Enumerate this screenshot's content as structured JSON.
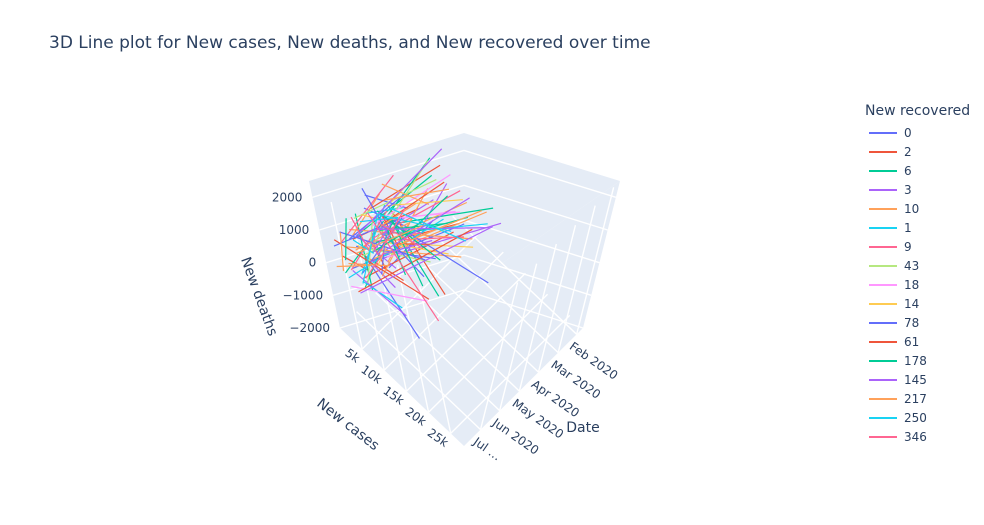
{
  "chart_data": {
    "type": "line",
    "title": "3D Line plot for New cases, New deaths, and New recovered over time",
    "x_axis": {
      "label": "Date",
      "ticks": [
        "Feb 2020",
        "Mar 2020",
        "Apr 2020",
        "May 2020",
        "Jun 2020",
        "Jul …"
      ],
      "range": [
        "2020-01-22",
        "2020-07-27"
      ]
    },
    "y_axis": {
      "label": "New cases",
      "ticks": [
        "5k",
        "10k",
        "15k",
        "20k",
        "25k"
      ],
      "range": [
        0,
        28000
      ]
    },
    "z_axis": {
      "label": "New deaths",
      "ticks": [
        "−2000",
        "−1000",
        "0",
        "1000",
        "2000"
      ],
      "range": [
        -2000,
        2500
      ]
    },
    "legend": {
      "title": "New recovered",
      "placement": "right"
    },
    "series": [
      {
        "name": "0",
        "color": "#636efa"
      },
      {
        "name": "2",
        "color": "#EF553B"
      },
      {
        "name": "6",
        "color": "#00cc96"
      },
      {
        "name": "3",
        "color": "#ab63fa"
      },
      {
        "name": "10",
        "color": "#FFA15A"
      },
      {
        "name": "1",
        "color": "#19d3f3"
      },
      {
        "name": "9",
        "color": "#FF6692"
      },
      {
        "name": "43",
        "color": "#B6E880"
      },
      {
        "name": "18",
        "color": "#FF97FF"
      },
      {
        "name": "14",
        "color": "#FECB52"
      },
      {
        "name": "78",
        "color": "#636efa"
      },
      {
        "name": "61",
        "color": "#EF553B"
      },
      {
        "name": "178",
        "color": "#00cc96"
      },
      {
        "name": "145",
        "color": "#ab63fa"
      },
      {
        "name": "217",
        "color": "#FFA15A"
      },
      {
        "name": "250",
        "color": "#19d3f3"
      },
      {
        "name": "346",
        "color": "#FF6692"
      }
    ]
  }
}
